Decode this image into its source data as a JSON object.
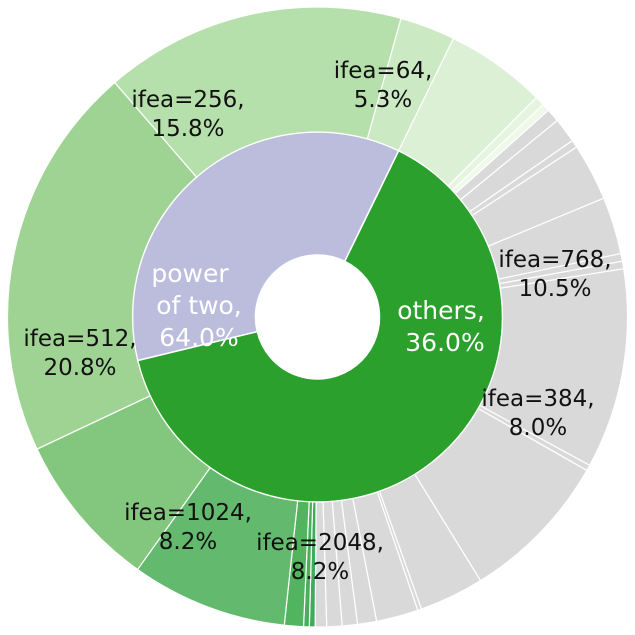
{
  "chart_data": {
    "type": "pie",
    "subtype": "sunburst",
    "inner_ring": [
      {
        "label": "power of two",
        "percent": 64.0,
        "display": [
          "power",
          "of two,",
          "64.0%"
        ],
        "color": "#2ca02c",
        "label_color": "#ffffff"
      },
      {
        "label": "others",
        "percent": 36.0,
        "display": [
          "others,",
          "36.0%"
        ],
        "color": "#bcbddc",
        "label_color": "#ffffff"
      }
    ],
    "outer_ring": [
      {
        "group": "power of two",
        "label": "ifea=64",
        "percent": 5.3,
        "display": [
          "ifea=64,",
          "5.3%"
        ],
        "color": "#dcf0d6"
      },
      {
        "group": "power of two",
        "label": "",
        "percent": 0.5,
        "display": [],
        "color": "#e6f5e0"
      },
      {
        "group": "power of two",
        "label": "",
        "percent": 0.4,
        "display": [],
        "color": "#eef9ea"
      },
      {
        "group": "others",
        "label": "",
        "percent": 0.7,
        "display": [],
        "color": "#d9d9d9"
      },
      {
        "group": "others",
        "label": "",
        "percent": 1.3,
        "display": [],
        "color": "#d9d9d9"
      },
      {
        "group": "others",
        "label": "",
        "percent": 0.4,
        "display": [],
        "color": "#d9d9d9"
      },
      {
        "group": "others",
        "label": "",
        "percent": 3.0,
        "display": [],
        "color": "#d9d9d9"
      },
      {
        "group": "others",
        "label": "",
        "percent": 3.0,
        "display": [],
        "color": "#d9d9d9"
      },
      {
        "group": "others",
        "label": "",
        "percent": 0.4,
        "display": [],
        "color": "#d9d9d9"
      },
      {
        "group": "others",
        "label": "",
        "percent": 0.4,
        "display": [],
        "color": "#d9d9d9"
      },
      {
        "group": "others",
        "label": "ifea=768",
        "percent": 10.5,
        "display": [
          "ifea=768,",
          "10.5%"
        ],
        "color": "#d9d9d9"
      },
      {
        "group": "others",
        "label": "",
        "percent": 0.3,
        "display": [],
        "color": "#d9d9d9"
      },
      {
        "group": "others",
        "label": "ifea=384",
        "percent": 8.0,
        "display": [
          "ifea=384,",
          "8.0%"
        ],
        "color": "#d9d9d9"
      },
      {
        "group": "others",
        "label": "",
        "percent": 3.4,
        "display": [],
        "color": "#d9d9d9"
      },
      {
        "group": "others",
        "label": "",
        "percent": 0.2,
        "display": [],
        "color": "#d9d9d9"
      },
      {
        "group": "others",
        "label": "",
        "percent": 2.2,
        "display": [],
        "color": "#d9d9d9"
      },
      {
        "group": "others",
        "label": "",
        "percent": 1.0,
        "display": [],
        "color": "#d9d9d9"
      },
      {
        "group": "others",
        "label": "",
        "percent": 0.8,
        "display": [],
        "color": "#d9d9d9"
      },
      {
        "group": "others",
        "label": "",
        "percent": 0.8,
        "display": [],
        "color": "#d9d9d9"
      },
      {
        "group": "others",
        "label": "",
        "percent": 0.6,
        "display": [],
        "color": "#d9d9d9"
      },
      {
        "group": "power of two",
        "label": "",
        "percent": 0.3,
        "display": [],
        "color": "#41ab5d"
      },
      {
        "group": "power of two",
        "label": "",
        "percent": 0.3,
        "display": [],
        "color": "#4aaf5a"
      },
      {
        "group": "power of two",
        "label": "",
        "percent": 1.0,
        "display": [],
        "color": "#52b45f"
      },
      {
        "group": "power of two",
        "label": "ifea=2048",
        "percent": 8.2,
        "display": [
          "ifea=2048,",
          "8.2%"
        ],
        "color": "#63b96e"
      },
      {
        "group": "power of two",
        "label": "ifea=1024",
        "percent": 8.2,
        "display": [
          "ifea=1024,",
          "8.2%"
        ],
        "color": "#83c77e"
      },
      {
        "group": "power of two",
        "label": "ifea=512",
        "percent": 20.8,
        "display": [
          "ifea=512,",
          "20.8%"
        ],
        "color": "#9fd394"
      },
      {
        "group": "power of two",
        "label": "ifea=256",
        "percent": 15.8,
        "display": [
          "ifea=256,",
          "15.8%"
        ],
        "color": "#b5dfab"
      },
      {
        "group": "power of two",
        "label": "",
        "percent": 2.9,
        "display": [],
        "color": "#cbe9c3"
      }
    ],
    "title": "",
    "legend": "none"
  }
}
